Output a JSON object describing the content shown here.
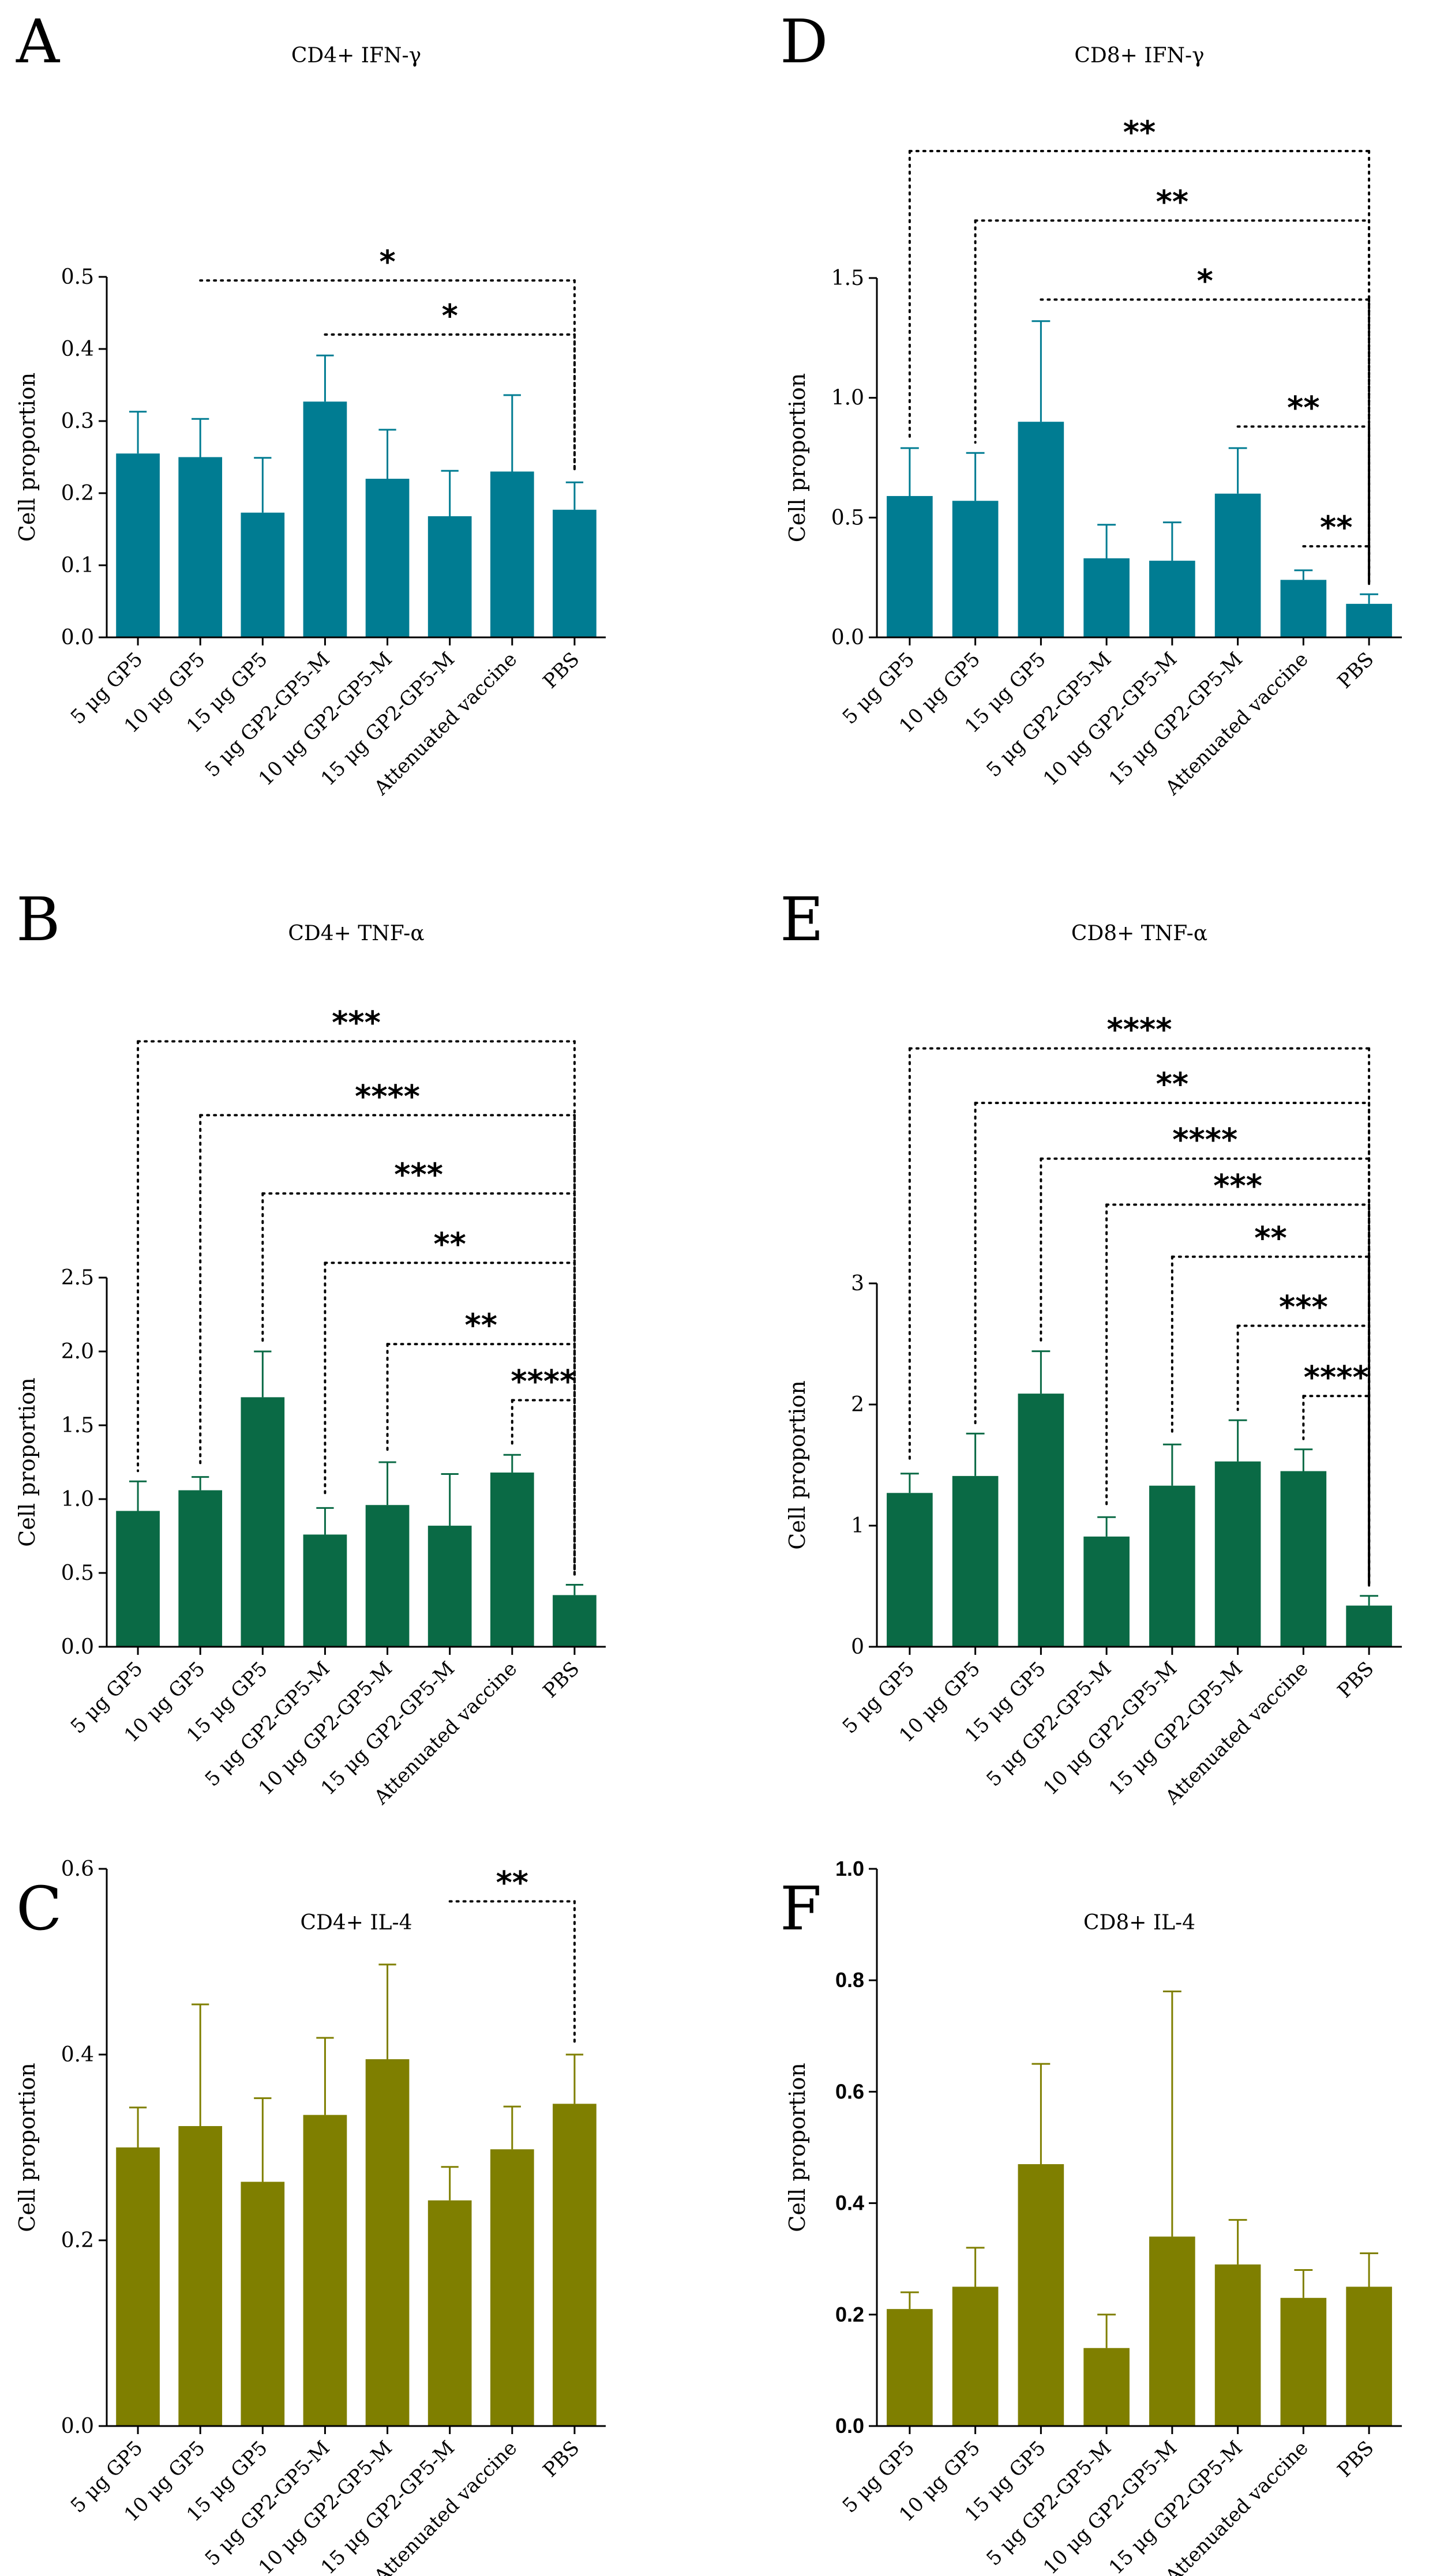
{
  "colors": {
    "teal": "#007C92",
    "green": "#0A6A45",
    "olive": "#7F7F00",
    "axis": "#000000"
  },
  "chart_data": [
    {
      "panel": "A",
      "type": "bar",
      "title": "CD4+ IFN-γ",
      "ylabel": "Cell proportion",
      "xlabel": "",
      "ylim": [
        0,
        0.5
      ],
      "yticks": [
        0,
        0.1,
        0.2,
        0.3,
        0.4,
        0.5
      ],
      "ytick_labels": [
        "0.0",
        "0.1",
        "0.2",
        "0.3",
        "0.4",
        "0.5"
      ],
      "color": "#007C92",
      "categories": [
        "5 μg GP5",
        "10 μg GP5",
        "15 μg GP5",
        "5 μg GP2-GP5-M",
        "10 μg GP2-GP5-M",
        "15 μg GP2-GP5-M",
        "Attenuated vaccine",
        "PBS"
      ],
      "values": [
        0.255,
        0.25,
        0.173,
        0.327,
        0.22,
        0.168,
        0.23,
        0.177
      ],
      "errors": [
        0.058,
        0.053,
        0.076,
        0.064,
        0.068,
        0.063,
        0.106,
        0.038
      ],
      "significance": [
        {
          "from": 1,
          "to": 7,
          "label": "*",
          "level": 0.495,
          "left_drop": false
        },
        {
          "from": 3,
          "to": 7,
          "label": "*",
          "level": 0.42,
          "left_drop": false
        }
      ]
    },
    {
      "panel": "B",
      "type": "bar",
      "title": "CD4+ TNF-α",
      "ylabel": "Cell proportion",
      "xlabel": "",
      "ylim": [
        0,
        2.5
      ],
      "yticks": [
        0,
        0.5,
        1.0,
        1.5,
        2.0,
        2.5
      ],
      "ytick_labels": [
        "0.0",
        "0.5",
        "1.0",
        "1.5",
        "2.0",
        "2.5"
      ],
      "color": "#0A6A45",
      "categories": [
        "5 μg GP5",
        "10 μg GP5",
        "15 μg GP5",
        "5 μg GP2-GP5-M",
        "10 μg GP2-GP5-M",
        "15 μg GP2-GP5-M",
        "Attenuated vaccine",
        "PBS"
      ],
      "values": [
        0.92,
        1.06,
        1.69,
        0.76,
        0.96,
        0.82,
        1.18,
        0.35
      ],
      "errors": [
        0.2,
        0.09,
        0.31,
        0.18,
        0.29,
        0.35,
        0.12,
        0.07
      ],
      "significance": [
        {
          "from": 0,
          "to": 7,
          "label": "***",
          "level": 4.1,
          "left_drop": true
        },
        {
          "from": 1,
          "to": 7,
          "label": "****",
          "level": 3.6,
          "left_drop": true
        },
        {
          "from": 2,
          "to": 7,
          "label": "***",
          "level": 3.07,
          "left_drop": true
        },
        {
          "from": 3,
          "to": 7,
          "label": "**",
          "level": 2.6,
          "left_drop": true
        },
        {
          "from": 4,
          "to": 7,
          "label": "**",
          "level": 2.05,
          "left_drop": true
        },
        {
          "from": 6,
          "to": 7,
          "label": "****",
          "level": 1.67,
          "left_drop": true
        }
      ]
    },
    {
      "panel": "C",
      "type": "bar",
      "title": "CD4+ IL-4",
      "ylabel": "Cell proportion",
      "xlabel": "",
      "ylim": [
        0,
        0.6
      ],
      "yticks": [
        0,
        0.2,
        0.4,
        0.6
      ],
      "ytick_labels": [
        "0.0",
        "0.2",
        "0.4",
        "0.6"
      ],
      "color": "#7F7F00",
      "categories": [
        "5 μg GP5",
        "10 μg GP5",
        "15 μg GP5",
        "5 μg GP2-GP5-M",
        "10 μg GP2-GP5-M",
        "15 μg GP2-GP5-M",
        "Attenuated vaccine",
        "PBS"
      ],
      "values": [
        0.3,
        0.323,
        0.263,
        0.335,
        0.395,
        0.243,
        0.298,
        0.347
      ],
      "errors": [
        0.043,
        0.131,
        0.09,
        0.083,
        0.102,
        0.036,
        0.046,
        0.053
      ],
      "significance": [
        {
          "from": 5,
          "to": 7,
          "label": "**",
          "level": 0.565,
          "left_drop": false
        }
      ]
    },
    {
      "panel": "D",
      "type": "bar",
      "title": "CD8+ IFN-γ",
      "ylabel": "Cell proportion",
      "xlabel": "",
      "ylim": [
        0,
        1.5
      ],
      "yticks": [
        0,
        0.5,
        1.0,
        1.5
      ],
      "ytick_labels": [
        "0.0",
        "0.5",
        "1.0",
        "1.5"
      ],
      "color": "#007C92",
      "categories": [
        "5 μg GP5",
        "10 μg GP5",
        "15 μg GP5",
        "5 μg GP2-GP5-M",
        "10 μg GP2-GP5-M",
        "15 μg GP2-GP5-M",
        "Attenuated vaccine",
        "PBS"
      ],
      "values": [
        0.59,
        0.57,
        0.9,
        0.33,
        0.32,
        0.6,
        0.24,
        0.14
      ],
      "errors": [
        0.2,
        0.2,
        0.42,
        0.14,
        0.16,
        0.19,
        0.04,
        0.04
      ],
      "significance": [
        {
          "from": 0,
          "to": 7,
          "label": "**",
          "level": 2.03,
          "left_drop": true
        },
        {
          "from": 1,
          "to": 7,
          "label": "**",
          "level": 1.74,
          "left_drop": true
        },
        {
          "from": 2,
          "to": 7,
          "label": "*",
          "level": 1.41,
          "left_drop": false
        },
        {
          "from": 5,
          "to": 7,
          "label": "**",
          "level": 0.88,
          "left_drop": false
        },
        {
          "from": 6,
          "to": 7,
          "label": "**",
          "level": 0.38,
          "left_drop": false
        }
      ]
    },
    {
      "panel": "E",
      "type": "bar",
      "title": "CD8+ TNF-α",
      "ylabel": "Cell proportion",
      "xlabel": "",
      "ylim": [
        0,
        3
      ],
      "yticks": [
        0,
        1,
        2,
        3
      ],
      "ytick_labels": [
        "0",
        "1",
        "2",
        "3"
      ],
      "color": "#0A6A45",
      "categories": [
        "5 μg GP5",
        "10 μg GP5",
        "15 μg GP5",
        "5 μg GP2-GP5-M",
        "10 μg GP2-GP5-M",
        "15 μg GP2-GP5-M",
        "Attenuated vaccine",
        "PBS"
      ],
      "values": [
        1.27,
        1.41,
        2.09,
        0.91,
        1.33,
        1.53,
        1.45,
        0.34
      ],
      "errors": [
        0.16,
        0.35,
        0.35,
        0.16,
        0.34,
        0.34,
        0.18,
        0.08
      ],
      "significance": [
        {
          "from": 0,
          "to": 7,
          "label": "****",
          "level": 4.94,
          "left_drop": true
        },
        {
          "from": 1,
          "to": 7,
          "label": "**",
          "level": 4.49,
          "left_drop": true
        },
        {
          "from": 2,
          "to": 7,
          "label": "****",
          "level": 4.03,
          "left_drop": true
        },
        {
          "from": 3,
          "to": 7,
          "label": "***",
          "level": 3.65,
          "left_drop": true
        },
        {
          "from": 4,
          "to": 7,
          "label": "**",
          "level": 3.22,
          "left_drop": true
        },
        {
          "from": 5,
          "to": 7,
          "label": "***",
          "level": 2.65,
          "left_drop": true
        },
        {
          "from": 6,
          "to": 7,
          "label": "****",
          "level": 2.07,
          "left_drop": true
        }
      ]
    },
    {
      "panel": "F",
      "type": "bar",
      "title": "CD8+ IL-4",
      "ylabel": "Cell proportion",
      "xlabel": "",
      "ylim": [
        0,
        1.0
      ],
      "yticks": [
        0,
        0.2,
        0.4,
        0.6,
        0.8,
        1.0
      ],
      "ytick_labels": [
        "0.0",
        "0.2",
        "0.4",
        "0.6",
        "0.8",
        "1.0"
      ],
      "bold_ticks": true,
      "color": "#7F7F00",
      "categories": [
        "5 μg GP5",
        "10 μg GP5",
        "15 μg GP5",
        "5 μg GP2-GP5-M",
        "10 μg GP2-GP5-M",
        "15 μg GP2-GP5-M",
        "Attenuated vaccine",
        "PBS"
      ],
      "values": [
        0.21,
        0.25,
        0.47,
        0.14,
        0.34,
        0.29,
        0.23,
        0.25
      ],
      "errors": [
        0.03,
        0.07,
        0.18,
        0.06,
        0.44,
        0.08,
        0.05,
        0.06
      ],
      "significance": []
    }
  ]
}
